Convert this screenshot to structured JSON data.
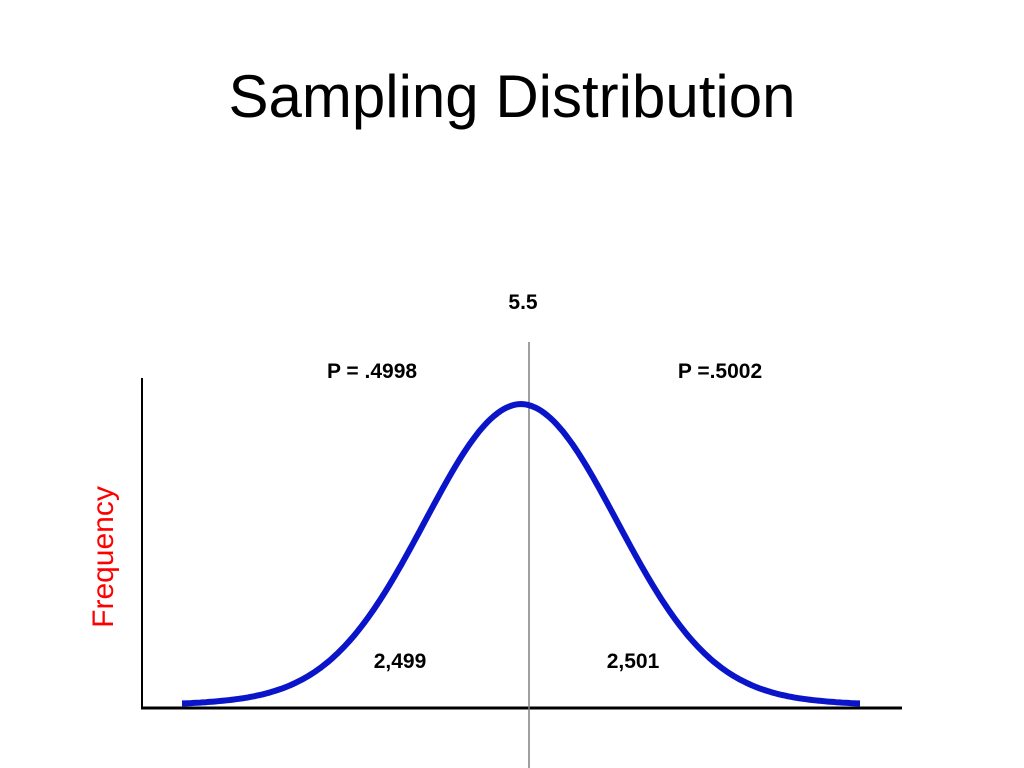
{
  "title": "Sampling Distribution",
  "colors": {
    "curve": "#0a14c8",
    "axis": "#000000",
    "center_line": "#808080",
    "ylabel": "#ff0000",
    "text": "#000000"
  },
  "chart_data": {
    "type": "line",
    "shape": "normal-curve",
    "ylabel": "Frequency",
    "xlabel": "",
    "center_label": "5.5",
    "left_region": {
      "probability_label": "P = .4998",
      "count_label": "2,499"
    },
    "right_region": {
      "probability_label": "P =.5002",
      "count_label": "2,501"
    },
    "grid": false
  }
}
